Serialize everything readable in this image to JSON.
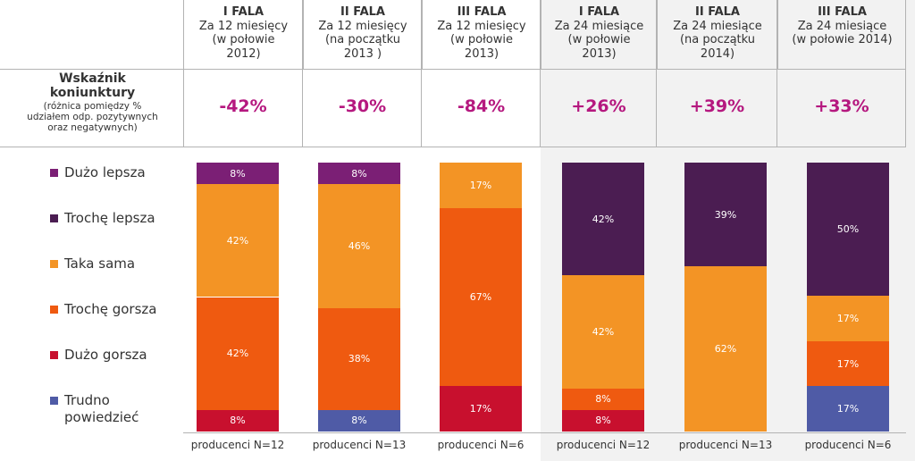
{
  "chart_data": {
    "type": "stacked-bar-100",
    "header": [
      {
        "fala": "I FALA",
        "period": "Za 12 miesięcy\n(w połowie\n2012)"
      },
      {
        "fala": "II FALA",
        "period": "Za 12 miesięcy\n(na początku\n2013 )"
      },
      {
        "fala": "III FALA",
        "period": "Za 12 miesięcy\n(w połowie\n2013)"
      },
      {
        "fala": "I FALA",
        "period": "Za 24 miesiące\n(w połowie\n2013)"
      },
      {
        "fala": "II FALA",
        "period": "Za 24 miesiące\n(na początku\n2014)"
      },
      {
        "fala": "III FALA",
        "period": "Za 24 miesiące\n(w połowie 2014)"
      }
    ],
    "indicator": {
      "title": "Wskaźnik\nkoniunktury",
      "subtitle": "(różnica pomiędzy %\nudziałem odp. pozytywnych\noraz negatywnych)",
      "values": [
        "-42%",
        "-30%",
        "-84%",
        "+26%",
        "+39%",
        "+33%"
      ]
    },
    "categories": [
      "producenci N=12",
      "producenci N=13",
      "producenci N=6",
      "producenci N=12",
      "producenci N=13",
      "producenci N=6"
    ],
    "series": [
      {
        "name": "Dużo lepsza",
        "color": "#7b1f75",
        "values": [
          8,
          8,
          0,
          0,
          0,
          0
        ]
      },
      {
        "name": "Trochę lepsza",
        "color": "#4b1d52",
        "values": [
          0,
          0,
          0,
          42,
          39,
          50
        ]
      },
      {
        "name": "Taka sama",
        "color": "#f39425",
        "values": [
          42,
          46,
          17,
          42,
          62,
          17
        ]
      },
      {
        "name": "Trochę gorsza",
        "color": "#ef5a10",
        "values": [
          42,
          38,
          67,
          8,
          0,
          17
        ]
      },
      {
        "name": "Dużo gorsza",
        "color": "#c8102e",
        "values": [
          8,
          0,
          17,
          8,
          0,
          0
        ]
      },
      {
        "name": "Trudno\npowiedzieć",
        "color": "#4f5ba6",
        "values": [
          0,
          8,
          0,
          0,
          0,
          17
        ]
      }
    ],
    "value_suffix": "%"
  }
}
